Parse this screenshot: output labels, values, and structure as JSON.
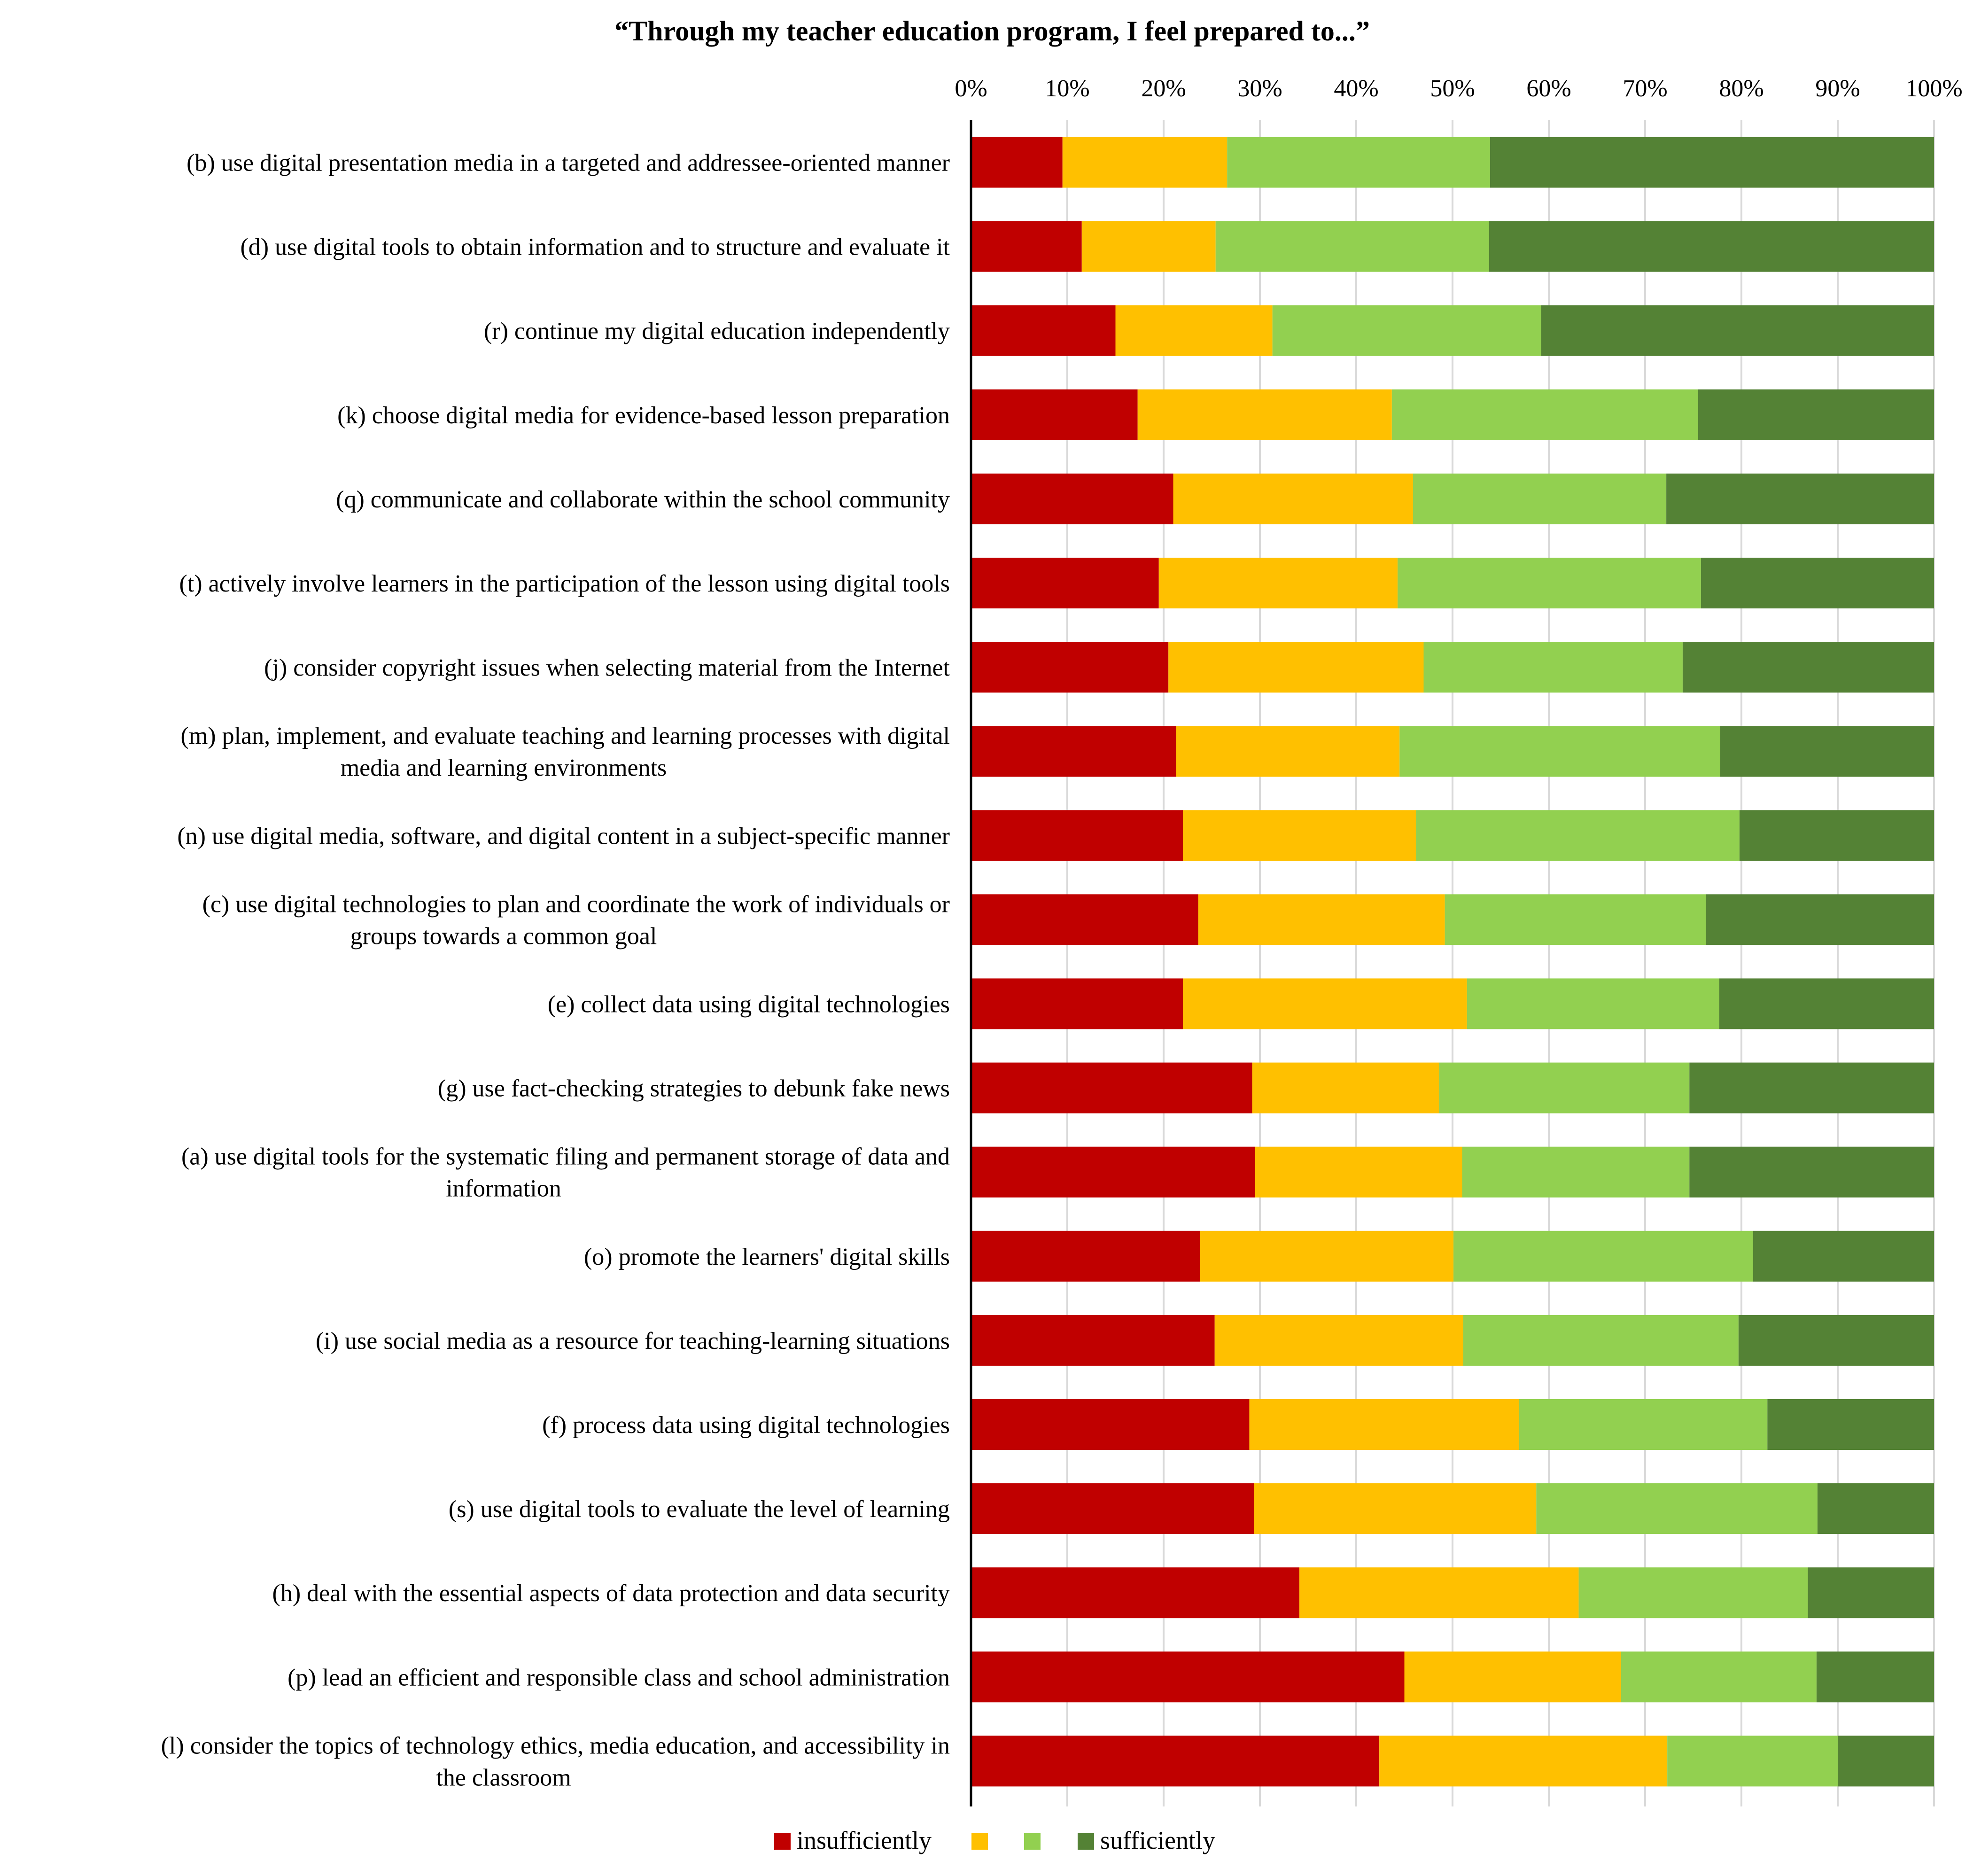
{
  "chart_data": {
    "type": "bar",
    "orientation": "horizontal",
    "stacked": "percent",
    "title": "“Through my teacher education program, I feel prepared to...”",
    "xlabel": "",
    "ylabel": "",
    "xlim": [
      0,
      100
    ],
    "x_ticks": [
      "0%",
      "10%",
      "20%",
      "30%",
      "40%",
      "50%",
      "60%",
      "70%",
      "80%",
      "90%",
      "100%"
    ],
    "grid": true,
    "legend_position": "bottom",
    "categories": [
      [
        "(b) use digital presentation media in a targeted and addressee-oriented manner"
      ],
      [
        "(d) use digital tools to obtain information and to structure and evaluate it"
      ],
      [
        "(r) continue my digital education independently"
      ],
      [
        "(k) choose digital media for evidence-based lesson preparation"
      ],
      [
        "(q) communicate and collaborate within the school community"
      ],
      [
        "(t) actively involve learners in the participation of the lesson using digital tools"
      ],
      [
        "(j) consider copyright issues when selecting material from the Internet"
      ],
      [
        "(m) plan, implement, and evaluate teaching and learning processes with digital",
        "media and learning environments"
      ],
      [
        "(n) use digital media, software, and digital content in a subject-specific manner"
      ],
      [
        "(c) use digital technologies to plan and coordinate the work of individuals or",
        "groups towards a common goal"
      ],
      [
        "(e) collect data using digital technologies"
      ],
      [
        "(g) use fact-checking strategies to debunk fake news"
      ],
      [
        "(a) use digital tools for the systematic filing and permanent storage of data and",
        "information"
      ],
      [
        "(o) promote the learners' digital skills"
      ],
      [
        "(i) use social media as a resource for teaching-learning situations"
      ],
      [
        "(f) process data using digital technologies"
      ],
      [
        "(s) use digital tools to evaluate the level of learning"
      ],
      [
        "(h) deal with the essential aspects of data protection and data security"
      ],
      [
        "(p) lead an efficient and responsible class and school administration"
      ],
      [
        "(l) consider the topics of technology ethics, media education, and accessibility in",
        "the classroom"
      ]
    ],
    "series": [
      {
        "name": "insufficiently",
        "color": "#C00000",
        "values": [
          9.5,
          11.5,
          15,
          17.3,
          21,
          19.5,
          20.5,
          21.3,
          22,
          23.6,
          22,
          29.2,
          29.5,
          23.8,
          25.3,
          28.9,
          29.4,
          34.1,
          45,
          42.4
        ]
      },
      {
        "name": "",
        "color": "#FFC000",
        "values": [
          17.1,
          13.9,
          16.3,
          26.4,
          24.9,
          24.8,
          26.5,
          23.2,
          24.2,
          25.6,
          29.5,
          19.4,
          21.5,
          26.3,
          25.8,
          28,
          29.3,
          29,
          22.5,
          29.9
        ]
      },
      {
        "name": "",
        "color": "#92D050",
        "values": [
          27.3,
          28.4,
          27.9,
          31.8,
          26.3,
          31.5,
          26.9,
          33.3,
          33.6,
          27.1,
          26.2,
          26,
          23.6,
          31.1,
          28.6,
          25.8,
          29.2,
          23.8,
          20.3,
          17.7
        ]
      },
      {
        "name": "sufficiently",
        "color": "#548235",
        "values": [
          46.1,
          46.2,
          40.8,
          24.5,
          27.8,
          24.2,
          26.1,
          22.2,
          20.2,
          23.7,
          22.3,
          25.4,
          25.4,
          18.8,
          20.3,
          17.3,
          12.1,
          13.1,
          12.2,
          10
        ]
      }
    ]
  }
}
